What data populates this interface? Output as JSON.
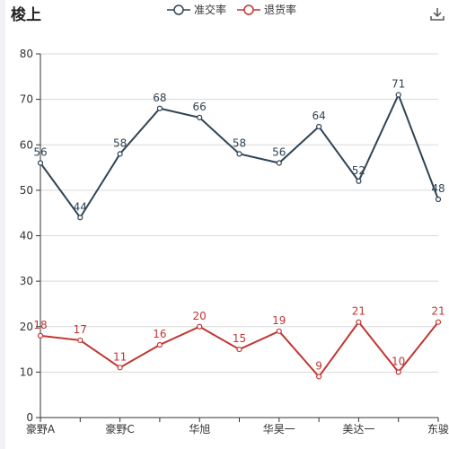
{
  "title": "梭上",
  "icons": {
    "download": "download-icon"
  },
  "colors": {
    "series1": "#2f4454",
    "series2": "#c23531",
    "grid": "#d9d9d9",
    "axis": "#333333"
  },
  "chart_data": {
    "type": "line",
    "x_tick_labels": [
      "豪野A",
      "",
      "豪野C",
      "",
      "华旭",
      "",
      "华昊一",
      "",
      "美达一",
      "",
      "东骏"
    ],
    "ylim": [
      0,
      80
    ],
    "yticks": [
      0,
      10,
      20,
      30,
      40,
      50,
      60,
      70,
      80
    ],
    "grid": true,
    "legend_position": "top-center",
    "series": [
      {
        "name": "准交率",
        "values": [
          56,
          44,
          58,
          68,
          66,
          58,
          56,
          64,
          52,
          71,
          48
        ]
      },
      {
        "name": "退货率",
        "values": [
          18,
          17,
          11,
          16,
          20,
          15,
          19,
          9,
          21,
          10,
          21
        ]
      }
    ]
  }
}
